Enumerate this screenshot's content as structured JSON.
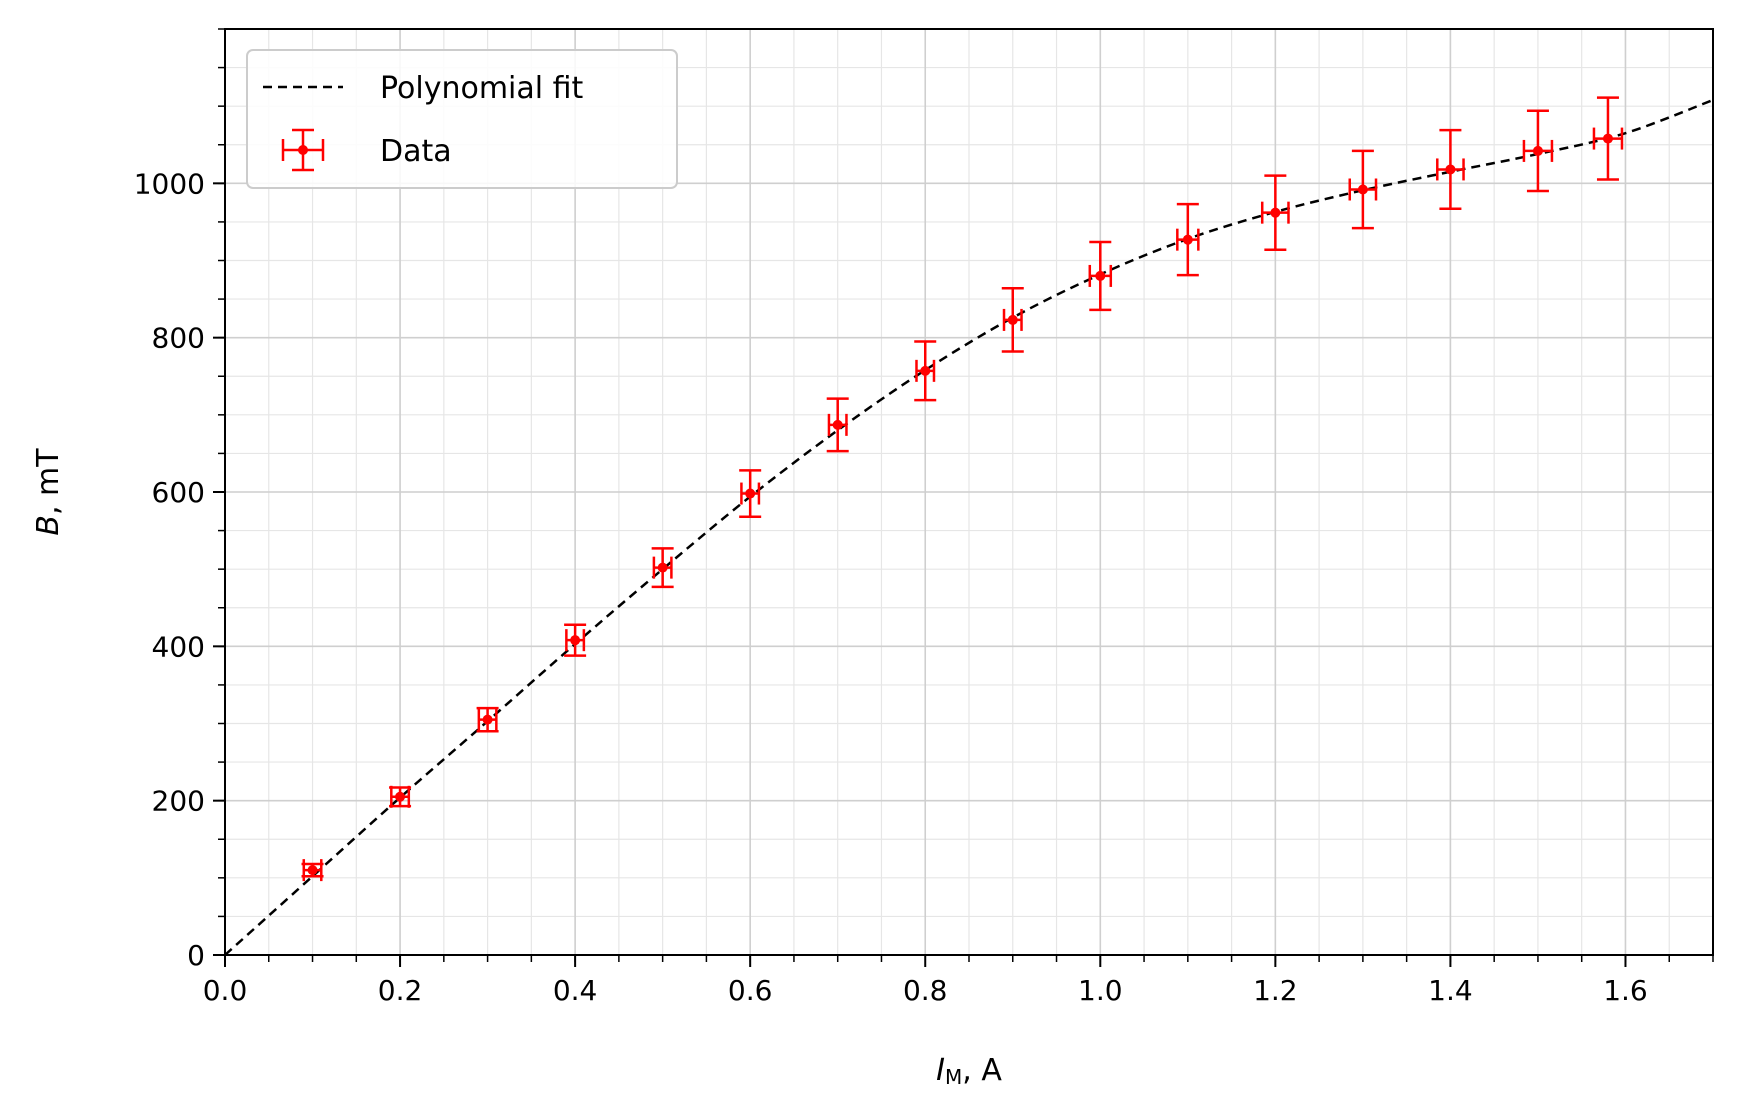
{
  "chart_data": {
    "type": "scatter",
    "xlabel_var": "I",
    "xlabel_sub": "M",
    "xlabel_unit": ",  A",
    "ylabel_var": "B",
    "ylabel_unit": ",  mT",
    "xlim": [
      0.0,
      1.7
    ],
    "ylim": [
      0,
      1200
    ],
    "x_ticks": [
      0.0,
      0.2,
      0.4,
      0.6,
      0.8,
      1.0,
      1.2,
      1.4,
      1.6
    ],
    "x_tick_labels": [
      "0.0",
      "0.2",
      "0.4",
      "0.6",
      "0.8",
      "1.0",
      "1.2",
      "1.4",
      "1.6"
    ],
    "y_ticks": [
      0,
      200,
      400,
      600,
      800,
      1000
    ],
    "y_tick_labels": [
      "0",
      "200",
      "400",
      "600",
      "800",
      "1000"
    ],
    "x_minor_step": 0.05,
    "y_minor_step": 50,
    "grid": true,
    "legend": {
      "location": "upper-left",
      "entries": [
        "Polynomial fit",
        "Data"
      ]
    },
    "series": [
      {
        "name": "Data",
        "kind": "errorbar",
        "color": "#ff0000",
        "x": [
          0.1,
          0.2,
          0.3,
          0.4,
          0.5,
          0.6,
          0.7,
          0.8,
          0.9,
          1.0,
          1.1,
          1.2,
          1.3,
          1.4,
          1.5,
          1.58
        ],
        "y": [
          110,
          205,
          305,
          408,
          502,
          598,
          687,
          757,
          823,
          880,
          927,
          962,
          992,
          1018,
          1042,
          1058
        ],
        "xerr": [
          0.01,
          0.01,
          0.01,
          0.01,
          0.01,
          0.01,
          0.01,
          0.01,
          0.01,
          0.012,
          0.012,
          0.015,
          0.015,
          0.015,
          0.016,
          0.016
        ],
        "yerr": [
          8,
          12,
          15,
          20,
          25,
          30,
          34,
          38,
          41,
          44,
          46,
          48,
          50,
          51,
          52,
          53
        ]
      },
      {
        "name": "Polynomial fit",
        "kind": "line",
        "color": "#000000",
        "dash": "dashed",
        "x": [
          0.0,
          0.1,
          0.2,
          0.3,
          0.4,
          0.5,
          0.6,
          0.7,
          0.8,
          0.9,
          1.0,
          1.1,
          1.2,
          1.3,
          1.4,
          1.5,
          1.6,
          1.7
        ],
        "y": [
          0,
          102,
          204,
          303,
          403,
          500,
          594,
          680,
          758,
          826,
          882,
          928,
          963,
          991,
          1015,
          1038,
          1065,
          1108
        ]
      }
    ]
  }
}
